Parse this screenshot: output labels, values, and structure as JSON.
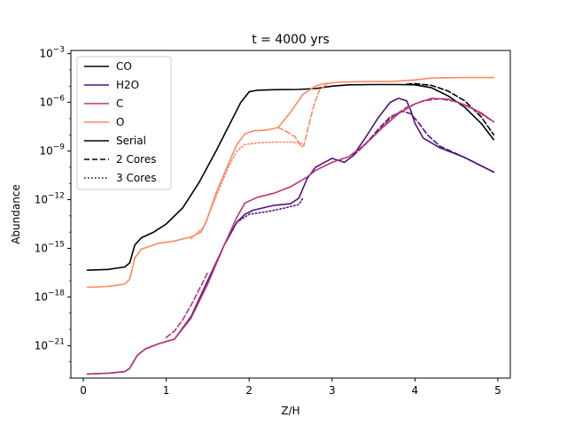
{
  "chart_data": {
    "type": "line",
    "title": "t = 4000 yrs",
    "xlabel": "Z/H",
    "ylabel": "Abundance",
    "xlim": [
      -0.15,
      5.15
    ],
    "ylim_log10": [
      -23.0,
      -2.8
    ],
    "y_scale": "log",
    "grid": false,
    "legend_placement": "top-left",
    "x_ticks": [
      0,
      1,
      2,
      3,
      4,
      5
    ],
    "x_tick_labels": [
      "0",
      "1",
      "2",
      "3",
      "4",
      "5"
    ],
    "y_ticks_log10": [
      -3,
      -6,
      -9,
      -12,
      -15,
      -18,
      -21
    ],
    "y_tick_labels": [
      {
        "base": "10",
        "exp": "−3"
      },
      {
        "base": "10",
        "exp": "−6"
      },
      {
        "base": "10",
        "exp": "−9"
      },
      {
        "base": "10",
        "exp": "−12"
      },
      {
        "base": "10",
        "exp": "−15"
      },
      {
        "base": "10",
        "exp": "−18"
      },
      {
        "base": "10",
        "exp": "−21"
      }
    ],
    "legend": [
      {
        "label": "CO",
        "color": "#000004",
        "dash": "solid"
      },
      {
        "label": "H2O",
        "color": "#51127c",
        "dash": "solid"
      },
      {
        "label": "C",
        "color": "#b73779",
        "dash": "solid"
      },
      {
        "label": "O",
        "color": "#fc8961",
        "dash": "solid"
      },
      {
        "label": "Serial",
        "color": "#000000",
        "dash": "solid"
      },
      {
        "label": "2 Cores",
        "color": "#000000",
        "dash": "dashed"
      },
      {
        "label": "3 Cores",
        "color": "#000000",
        "dash": "dotted"
      }
    ],
    "series": [
      {
        "species": "CO",
        "run": "serial",
        "color": "#000004",
        "dash": "solid",
        "x": [
          0.05,
          0.3,
          0.5,
          0.56,
          0.62,
          0.7,
          0.85,
          1.0,
          1.2,
          1.4,
          1.6,
          1.8,
          1.9,
          2.0,
          2.1,
          2.3,
          2.6,
          2.8,
          3.0,
          3.2,
          3.5,
          3.8,
          4.0,
          4.2,
          4.4,
          4.6,
          4.8,
          4.95
        ],
        "y": [
          -16.35,
          -16.3,
          -16.15,
          -15.9,
          -14.8,
          -14.35,
          -14.0,
          -13.5,
          -12.5,
          -10.9,
          -9.0,
          -7.0,
          -6.0,
          -5.35,
          -5.25,
          -5.22,
          -5.2,
          -5.15,
          -5.0,
          -4.92,
          -4.9,
          -4.9,
          -4.92,
          -5.1,
          -5.6,
          -6.3,
          -7.3,
          -8.3
        ]
      },
      {
        "species": "CO",
        "run": "2 cores",
        "color": "#000004",
        "dash": "dashed",
        "x": [
          3.9,
          4.0,
          4.2,
          4.4,
          4.6,
          4.8,
          4.95
        ],
        "y": [
          -4.88,
          -4.85,
          -4.95,
          -5.3,
          -5.9,
          -6.9,
          -8.0
        ]
      },
      {
        "species": "H2O",
        "run": "serial",
        "color": "#51127c",
        "dash": "solid",
        "x": [
          0.05,
          0.3,
          0.5,
          0.56,
          0.65,
          0.75,
          0.9,
          1.1,
          1.3,
          1.5,
          1.7,
          1.85,
          1.95,
          2.05,
          2.3,
          2.5,
          2.6,
          2.65,
          2.7,
          2.8,
          3.0,
          3.15,
          3.25,
          3.4,
          3.55,
          3.7,
          3.8,
          3.9,
          3.95,
          4.0,
          4.1,
          4.3,
          4.6,
          4.95
        ],
        "y": [
          -22.75,
          -22.7,
          -22.6,
          -22.4,
          -21.6,
          -21.2,
          -20.9,
          -20.6,
          -19.2,
          -17.0,
          -14.8,
          -13.4,
          -12.9,
          -12.65,
          -12.35,
          -12.25,
          -11.9,
          -11.3,
          -10.7,
          -10.0,
          -9.45,
          -9.7,
          -9.3,
          -8.2,
          -7.0,
          -6.0,
          -5.75,
          -5.9,
          -6.5,
          -7.3,
          -8.2,
          -8.8,
          -9.4,
          -10.3
        ]
      },
      {
        "species": "H2O",
        "run": "2 cores",
        "color": "#51127c",
        "dash": "dashed",
        "x": [
          3.25,
          3.4,
          3.55,
          3.7,
          3.85,
          3.95,
          4.05,
          4.15,
          4.3,
          4.6,
          4.95
        ],
        "y": [
          -9.3,
          -8.6,
          -7.7,
          -6.9,
          -6.55,
          -6.7,
          -7.3,
          -8.0,
          -8.7,
          -9.4,
          -10.3
        ]
      },
      {
        "species": "H2O",
        "run": "3 cores",
        "color": "#51127c",
        "dash": "dotted",
        "x": [
          1.85,
          2.0,
          2.2,
          2.4,
          2.6,
          2.65
        ],
        "y": [
          -13.4,
          -12.9,
          -12.75,
          -12.55,
          -12.3,
          -11.9
        ]
      },
      {
        "species": "C",
        "run": "serial",
        "color": "#b73779",
        "dash": "solid",
        "x": [
          0.05,
          0.3,
          0.5,
          0.56,
          0.65,
          0.75,
          0.9,
          1.1,
          1.3,
          1.5,
          1.7,
          1.85,
          1.95,
          2.1,
          2.3,
          2.5,
          2.6,
          2.7,
          2.8,
          3.0,
          3.2,
          3.4,
          3.6,
          3.8,
          4.0,
          4.2,
          4.4,
          4.6,
          4.8,
          4.95
        ],
        "y": [
          -22.75,
          -22.7,
          -22.6,
          -22.4,
          -21.6,
          -21.2,
          -20.9,
          -20.6,
          -19.3,
          -17.2,
          -14.8,
          -13.1,
          -12.2,
          -11.85,
          -11.6,
          -11.2,
          -10.9,
          -10.6,
          -10.2,
          -9.7,
          -9.35,
          -8.6,
          -7.6,
          -6.7,
          -6.1,
          -5.75,
          -5.8,
          -6.15,
          -6.65,
          -7.2
        ]
      },
      {
        "species": "C",
        "run": "2 cores",
        "color": "#b73779",
        "dash": "dashed",
        "x": [
          1.0,
          1.1,
          1.2,
          1.3,
          1.4,
          1.5
        ],
        "y": [
          -20.5,
          -20.1,
          -19.4,
          -18.5,
          -17.5,
          -16.5
        ]
      },
      {
        "species": "C",
        "run": "2 cores",
        "color": "#b73779",
        "dash": "dashed",
        "x": [
          3.3,
          3.5,
          3.7,
          3.9,
          4.1,
          4.3,
          4.5,
          4.7,
          4.95
        ],
        "y": [
          -9.0,
          -8.1,
          -7.0,
          -6.3,
          -5.9,
          -5.78,
          -5.95,
          -6.4,
          -7.2
        ]
      },
      {
        "species": "O",
        "run": "serial",
        "color": "#fc8961",
        "dash": "solid",
        "x": [
          0.05,
          0.3,
          0.5,
          0.56,
          0.62,
          0.7,
          0.9,
          1.1,
          1.3,
          1.42,
          1.48,
          1.6,
          1.75,
          1.85,
          1.95,
          2.05,
          2.2,
          2.35,
          2.5,
          2.65,
          2.8,
          2.9,
          3.1,
          3.4,
          3.7,
          4.0,
          4.2,
          4.4,
          4.6,
          4.8,
          4.95
        ],
        "y": [
          -17.4,
          -17.35,
          -17.2,
          -16.9,
          -15.6,
          -15.05,
          -14.7,
          -14.55,
          -14.3,
          -14.0,
          -13.4,
          -11.6,
          -9.8,
          -8.6,
          -7.95,
          -7.75,
          -7.72,
          -7.55,
          -6.6,
          -5.5,
          -5.0,
          -4.85,
          -4.75,
          -4.72,
          -4.72,
          -4.62,
          -4.5,
          -4.48,
          -4.47,
          -4.47,
          -4.47
        ]
      },
      {
        "species": "O",
        "run": "2 cores",
        "color": "#fc8961",
        "dash": "dashed",
        "x": [
          2.35,
          2.45,
          2.55,
          2.6,
          2.63,
          2.66,
          2.7,
          2.78,
          2.85,
          2.95
        ],
        "y": [
          -7.55,
          -7.8,
          -8.1,
          -8.5,
          -8.75,
          -8.65,
          -7.8,
          -6.2,
          -5.2,
          -4.85
        ]
      },
      {
        "species": "O",
        "run": "3 cores",
        "color": "#fc8961",
        "dash": "dotted",
        "x": [
          1.3,
          1.45,
          1.6,
          1.75,
          1.85,
          1.95,
          2.1,
          2.3,
          2.5,
          2.62,
          2.66
        ],
        "y": [
          -14.4,
          -13.7,
          -11.8,
          -10.0,
          -9.0,
          -8.6,
          -8.5,
          -8.45,
          -8.45,
          -8.5,
          -8.65
        ]
      }
    ]
  }
}
